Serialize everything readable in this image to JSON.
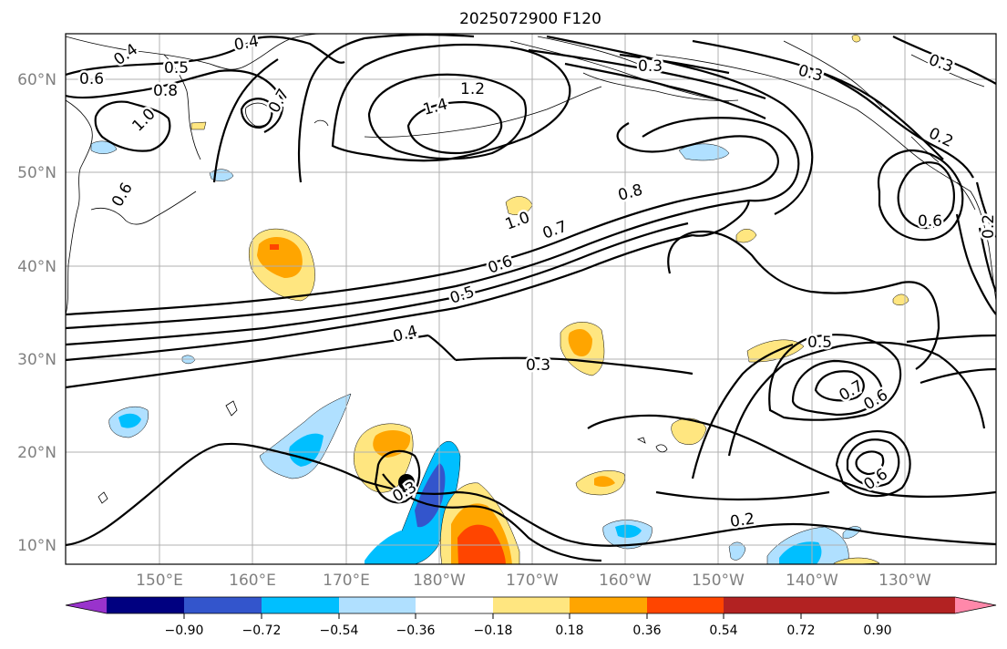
{
  "title": "2025072900 F120",
  "lon_ticks": [
    "150°E",
    "160°E",
    "170°E",
    "180°W",
    "170°W",
    "160°W",
    "150°W",
    "140°W",
    "130°W"
  ],
  "lat_ticks": [
    "60°N",
    "50°N",
    "40°N",
    "30°N",
    "20°N",
    "10°N"
  ],
  "colorbar": {
    "ticks": [
      "−0.90",
      "−0.72",
      "−0.54",
      "−0.36",
      "−0.18",
      "0.18",
      "0.36",
      "0.54",
      "0.72",
      "0.90"
    ],
    "colors": [
      "#9933cc",
      "#000080",
      "#3355cc",
      "#00bfff",
      "#b0e0ff",
      "#ffffff",
      "#ffe680",
      "#ffa500",
      "#ff4500",
      "#b22222",
      "#ff88aa"
    ]
  },
  "contour_labels": [
    {
      "text": "0.4"
    },
    {
      "text": "0.5"
    },
    {
      "text": "0.6"
    },
    {
      "text": "0.8"
    },
    {
      "text": "1.0"
    },
    {
      "text": "1.2"
    },
    {
      "text": "1.4"
    },
    {
      "text": "0.3"
    },
    {
      "text": "0.3"
    },
    {
      "text": "0.3"
    },
    {
      "text": "0.2"
    },
    {
      "text": "0.6"
    },
    {
      "text": "0.2"
    },
    {
      "text": "0.6"
    },
    {
      "text": "0.8"
    },
    {
      "text": "0.7"
    },
    {
      "text": "1.0"
    },
    {
      "text": "0.6"
    },
    {
      "text": "0.5"
    },
    {
      "text": "0.4"
    },
    {
      "text": "0.3"
    },
    {
      "text": "0.5"
    },
    {
      "text": "0.7"
    },
    {
      "text": "0.6"
    },
    {
      "text": "0.6"
    },
    {
      "text": "0.2"
    },
    {
      "text": "0.3"
    },
    {
      "text": "0.7"
    },
    {
      "text": "0.4"
    }
  ],
  "marker": {
    "name": "storm-center"
  }
}
